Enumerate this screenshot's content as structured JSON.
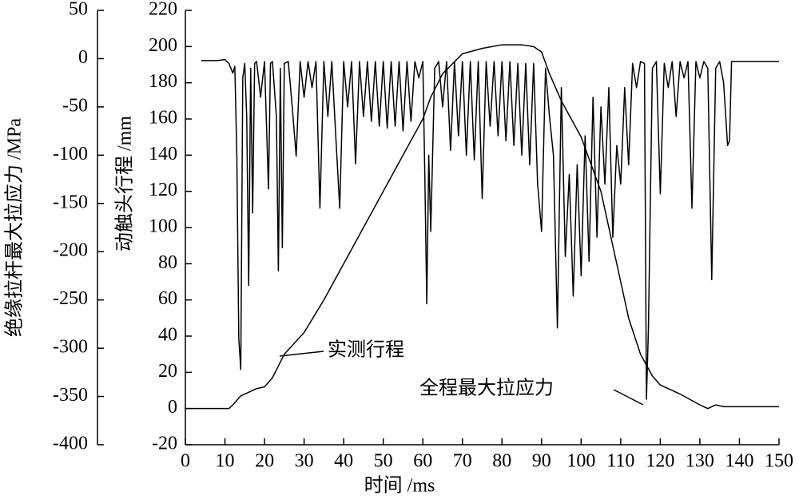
{
  "chart_data": {
    "type": "line",
    "xlabel": "时间 /ms",
    "ylabel": "绝缘拉杆最大拉应力 /MPa",
    "y2label": "动触头行程 /mm",
    "xlim": [
      0,
      150
    ],
    "xticks": [
      0,
      10,
      20,
      30,
      40,
      50,
      60,
      70,
      80,
      90,
      100,
      110,
      120,
      130,
      140,
      150
    ],
    "ylim": [
      -400,
      50
    ],
    "yticks": [
      -400,
      -350,
      -300,
      -250,
      -200,
      -150,
      -100,
      -50,
      0,
      50
    ],
    "y2lim": [
      -20,
      220
    ],
    "y2ticks": [
      -20,
      0,
      20,
      40,
      60,
      80,
      100,
      120,
      140,
      160,
      180,
      200,
      220
    ],
    "annotations": [
      "实测行程",
      "全程最大拉应力"
    ],
    "series": [
      {
        "color": "#000000",
        "axis": "y",
        "x": [
          4,
          8,
          10,
          11,
          12,
          12.5,
          13,
          13.5,
          14,
          14.5,
          15,
          15.5,
          16,
          16.5,
          17,
          17.5,
          18,
          19,
          20,
          21,
          21.5,
          22,
          23,
          23.5,
          24,
          24.5,
          25,
          26,
          27,
          28,
          29,
          30,
          31,
          32,
          33,
          34,
          35,
          36,
          37,
          38,
          39,
          40,
          41,
          42,
          43,
          44,
          45,
          46,
          47,
          48,
          49,
          50,
          51,
          52,
          53,
          54,
          55,
          56,
          57,
          58,
          59,
          60,
          60.5,
          61,
          61.5,
          62,
          63,
          64,
          65,
          66,
          67,
          68,
          69,
          70,
          71,
          72,
          73,
          74,
          75,
          76,
          77,
          78,
          79,
          80,
          81,
          82,
          83,
          84,
          85,
          86,
          87,
          88,
          89,
          90,
          91,
          92,
          93,
          94,
          95,
          96,
          97,
          98,
          99,
          100,
          101,
          102,
          103,
          104,
          105,
          106,
          107,
          108,
          109,
          110,
          111,
          112,
          113,
          114,
          115,
          116,
          116.5,
          117,
          118,
          119,
          120,
          121,
          122,
          123,
          124,
          125,
          126,
          127,
          128,
          129,
          130,
          131,
          132,
          133,
          134,
          135,
          136,
          137,
          137.5,
          138,
          150
        ],
        "values": [
          -2,
          -2,
          -1,
          -5,
          -15,
          -8,
          -100,
          -290,
          -322,
          -20,
          -5,
          -60,
          -235,
          -10,
          -160,
          -5,
          -3,
          -40,
          -3,
          -135,
          -5,
          -3,
          -60,
          -220,
          -10,
          -196,
          -5,
          -3,
          -50,
          -101,
          -3,
          -40,
          -3,
          -30,
          -3,
          -155,
          -3,
          -60,
          -3,
          -80,
          -155,
          -3,
          -50,
          -3,
          -109,
          -3,
          -60,
          -3,
          -65,
          -3,
          -70,
          -3,
          -72,
          -3,
          -70,
          -3,
          -75,
          -3,
          -65,
          -3,
          -20,
          -3,
          -120,
          -254,
          -100,
          -179,
          -10,
          -3,
          -50,
          -3,
          -95,
          -3,
          -80,
          -3,
          -100,
          -3,
          -105,
          -3,
          -145,
          -3,
          -70,
          -3,
          -80,
          -3,
          -85,
          -3,
          -90,
          -5,
          -100,
          -5,
          -110,
          -5,
          -130,
          -179,
          -10,
          -60,
          -100,
          -279,
          -30,
          -205,
          -120,
          -246,
          -110,
          -225,
          -80,
          -210,
          -40,
          -185,
          -50,
          -130,
          -30,
          -185,
          -90,
          -130,
          -30,
          -110,
          -5,
          -30,
          -3,
          -5,
          -353,
          -280,
          -10,
          -3,
          -140,
          -5,
          -30,
          -3,
          -60,
          -3,
          -20,
          -3,
          -155,
          -3,
          -20,
          -3,
          -10,
          -229,
          -10,
          -3,
          -25,
          -90,
          -85,
          -3,
          -3
        ]
      },
      {
        "color": "#000000",
        "axis": "y2",
        "x": [
          0,
          11,
          12,
          14,
          16,
          18,
          20,
          22,
          25,
          30,
          35,
          40,
          45,
          50,
          55,
          60,
          62,
          65,
          70,
          75,
          80,
          85,
          88,
          90,
          92,
          95,
          100,
          105,
          110,
          112,
          115,
          118,
          120,
          125,
          130,
          132,
          134,
          136,
          150
        ],
        "values": [
          0,
          0,
          2,
          7,
          9,
          11,
          12,
          17,
          30,
          42,
          60,
          80,
          100,
          120,
          140,
          160,
          172,
          185,
          196,
          199,
          201,
          201,
          200,
          197,
          185,
          170,
          150,
          120,
          70,
          50,
          30,
          18,
          13,
          8,
          2,
          0,
          2,
          1,
          1
        ]
      }
    ]
  }
}
